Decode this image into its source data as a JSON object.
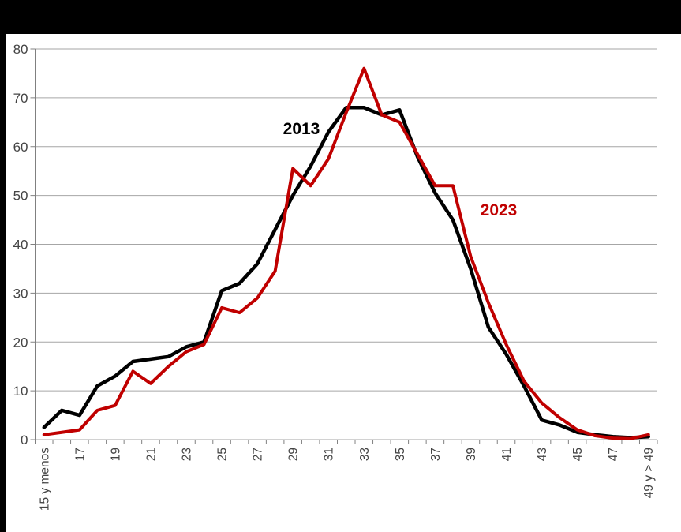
{
  "window": {
    "top_bar_color": "#000000",
    "left_bar_color": "#000000",
    "background": "#ffffff"
  },
  "chart_data": {
    "type": "line",
    "title": "",
    "xlabel": "",
    "ylabel": "",
    "ylim": [
      0,
      80
    ],
    "y_ticks": [
      0,
      10,
      20,
      30,
      40,
      50,
      60,
      70,
      80
    ],
    "grid": "horizontal",
    "grid_color": "#a6a6a6",
    "axis_color": "#808080",
    "label_color": "#444444",
    "x_label_every": 2,
    "categories": [
      "15 y menos",
      "16",
      "17",
      "18",
      "19",
      "20",
      "21",
      "22",
      "23",
      "24",
      "25",
      "26",
      "27",
      "28",
      "29",
      "30",
      "31",
      "32",
      "33",
      "34",
      "35",
      "36",
      "37",
      "38",
      "39",
      "40",
      "41",
      "42",
      "43",
      "44",
      "45",
      "46",
      "47",
      "48",
      "49 y > 49"
    ],
    "x_tick_labels_shown": [
      "15 y menos",
      "17",
      "19",
      "21",
      "23",
      "25",
      "27",
      "29",
      "31",
      "33",
      "35",
      "37",
      "39",
      "41",
      "43",
      "45",
      "47",
      "49 y > 49"
    ],
    "series": [
      {
        "name": "2013",
        "color": "#000000",
        "stroke_width": 4.5,
        "values": [
          2.5,
          6,
          5,
          11,
          13,
          16,
          16.5,
          17,
          19,
          20,
          30.5,
          32,
          36,
          43,
          50,
          56,
          63,
          68,
          68,
          66.5,
          67.5,
          58,
          50.5,
          45,
          35,
          23,
          17.5,
          11,
          4,
          3,
          1.5,
          1,
          0.6,
          0.4,
          0.6
        ]
      },
      {
        "name": "2023",
        "color": "#c00000",
        "stroke_width": 4,
        "values": [
          1,
          1.5,
          2,
          6,
          7,
          14,
          11.5,
          15,
          18,
          19.5,
          27,
          26,
          29,
          34.5,
          55.5,
          52,
          57.5,
          67,
          76,
          66.5,
          65,
          58.5,
          52,
          52,
          37.5,
          28,
          19.5,
          12,
          7.5,
          4.5,
          2,
          0.8,
          0.3,
          0.2,
          1
        ]
      }
    ],
    "annotations": [
      {
        "text": "2013",
        "color": "#000000"
      },
      {
        "text": "2023",
        "color": "#c00000"
      }
    ],
    "legend_position": "inline-labels"
  }
}
